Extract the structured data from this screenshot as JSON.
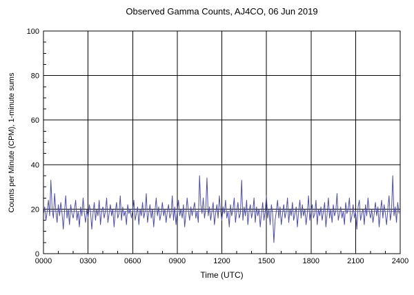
{
  "chart_data": {
    "type": "line",
    "title": "Observed Gamma Counts, AJ4CO, 06 Jun 2019",
    "xlabel": "Time (UTC)",
    "ylabel": "Counts per Minute (CPM), 1-minute sums",
    "xlim": [
      0,
      1440
    ],
    "ylim": [
      0,
      100
    ],
    "x_tick_minutes": [
      0,
      180,
      360,
      540,
      720,
      900,
      1080,
      1260,
      1440
    ],
    "x_tick_labels": [
      "0000",
      "0300",
      "0600",
      "0900",
      "1200",
      "1500",
      "1800",
      "2100",
      "2400"
    ],
    "y_ticks": [
      0,
      20,
      40,
      60,
      80,
      100
    ],
    "y_tick_labels": [
      "0",
      "20",
      "40",
      "60",
      "80",
      "100"
    ],
    "grid": true,
    "legend": "none",
    "mean_line": 19,
    "line_color": "#4a4ab2",
    "mean_line_color": "#777777",
    "grid_color": "#000000",
    "series": [
      {
        "name": "Observed gamma counts (1-minute sums)",
        "sample_interval_min": 5,
        "values": [
          18,
          21,
          15,
          19,
          24,
          17,
          33,
          20,
          16,
          27,
          19,
          14,
          22,
          17,
          23,
          18,
          11,
          19,
          26,
          16,
          20,
          13,
          22,
          18,
          16,
          20,
          24,
          15,
          19,
          12,
          21,
          17,
          25,
          18,
          14,
          20,
          16,
          22,
          19,
          11,
          18,
          23,
          15,
          20,
          17,
          24,
          13,
          19,
          21,
          16,
          19,
          25,
          14,
          18,
          22,
          17,
          20,
          12,
          19,
          23,
          16,
          18,
          26,
          15,
          21,
          17,
          19,
          13,
          22,
          18,
          20,
          16,
          19,
          24,
          15,
          18,
          21,
          13,
          20,
          17,
          23,
          16,
          19,
          27,
          14,
          18,
          22,
          16,
          20,
          12,
          19,
          25,
          17,
          21,
          15,
          18,
          23,
          17,
          20,
          14,
          19,
          22,
          16,
          18,
          26,
          15,
          21,
          13,
          19,
          24,
          17,
          20,
          16,
          22,
          12,
          18,
          25,
          19,
          15,
          21,
          17,
          20,
          23,
          16,
          19,
          14,
          35,
          22,
          18,
          25,
          16,
          20,
          34,
          17,
          21,
          15,
          19,
          23,
          13,
          18,
          22,
          16,
          26,
          19,
          15,
          21,
          18,
          24,
          16,
          19,
          12,
          22,
          17,
          20,
          25,
          14,
          19,
          23,
          16,
          18,
          33,
          15,
          21,
          17,
          24,
          13,
          19,
          22,
          16,
          19,
          25,
          14,
          21,
          17,
          20,
          12,
          18,
          23,
          15,
          19,
          26,
          16,
          20,
          13,
          22,
          18,
          5,
          15,
          19,
          24,
          16,
          21,
          13,
          18,
          22,
          16,
          19,
          25,
          14,
          20,
          17,
          23,
          15,
          18,
          21,
          12,
          19,
          24,
          16,
          22,
          17,
          20,
          13,
          18,
          26,
          15,
          19,
          22,
          16,
          18,
          24,
          13,
          20,
          17,
          21,
          15,
          19,
          23,
          12,
          18,
          25,
          16,
          20,
          14,
          22,
          17,
          19,
          27,
          15,
          18,
          21,
          16,
          19,
          13,
          23,
          18,
          20,
          25,
          14,
          17,
          22,
          16,
          19,
          11,
          21,
          24,
          15,
          18,
          20,
          13,
          22,
          17,
          25,
          19,
          16,
          20,
          14,
          18,
          23,
          17,
          21,
          12,
          19,
          24,
          16,
          22,
          18,
          13,
          20,
          26,
          15,
          19,
          35,
          17,
          21,
          14,
          23,
          18
        ]
      }
    ]
  }
}
